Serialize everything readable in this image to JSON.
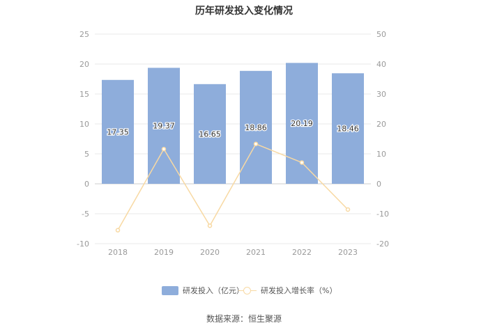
{
  "title": "历年研发投入变化情况",
  "source_text": "数据来源：恒生聚源",
  "legend": {
    "bar_label": "研发投入（亿元）",
    "line_label": "研发投入增长率（%）"
  },
  "colors": {
    "bar": "#8eaddb",
    "line": "#f8d9a3",
    "grid": "#e8e8e8",
    "axis_text": "#999999"
  },
  "chart_data": {
    "type": "bar",
    "title": "历年研发投入变化情况",
    "categories": [
      "2018",
      "2019",
      "2020",
      "2021",
      "2022",
      "2023"
    ],
    "series": [
      {
        "name": "研发投入（亿元）",
        "type": "bar",
        "axis": "left",
        "values": [
          17.35,
          19.37,
          16.65,
          18.86,
          20.19,
          18.46
        ],
        "labels": [
          "17.35",
          "19.37",
          "16.65",
          "18.86",
          "20.19",
          "18.46"
        ]
      },
      {
        "name": "研发投入增长率（%）",
        "type": "line",
        "axis": "right",
        "values": [
          -15.5,
          11.6,
          -14.0,
          13.3,
          7.1,
          -8.6
        ]
      }
    ],
    "left_axis": {
      "min": -10,
      "max": 25,
      "step": 5,
      "ticks": [
        "-10",
        "-5",
        "0",
        "5",
        "10",
        "15",
        "20",
        "25"
      ]
    },
    "right_axis": {
      "min": -20,
      "max": 50,
      "step": 10,
      "ticks": [
        "-20",
        "-10",
        "0",
        "10",
        "20",
        "30",
        "40",
        "50"
      ]
    },
    "grid": true,
    "legend_position": "bottom"
  }
}
